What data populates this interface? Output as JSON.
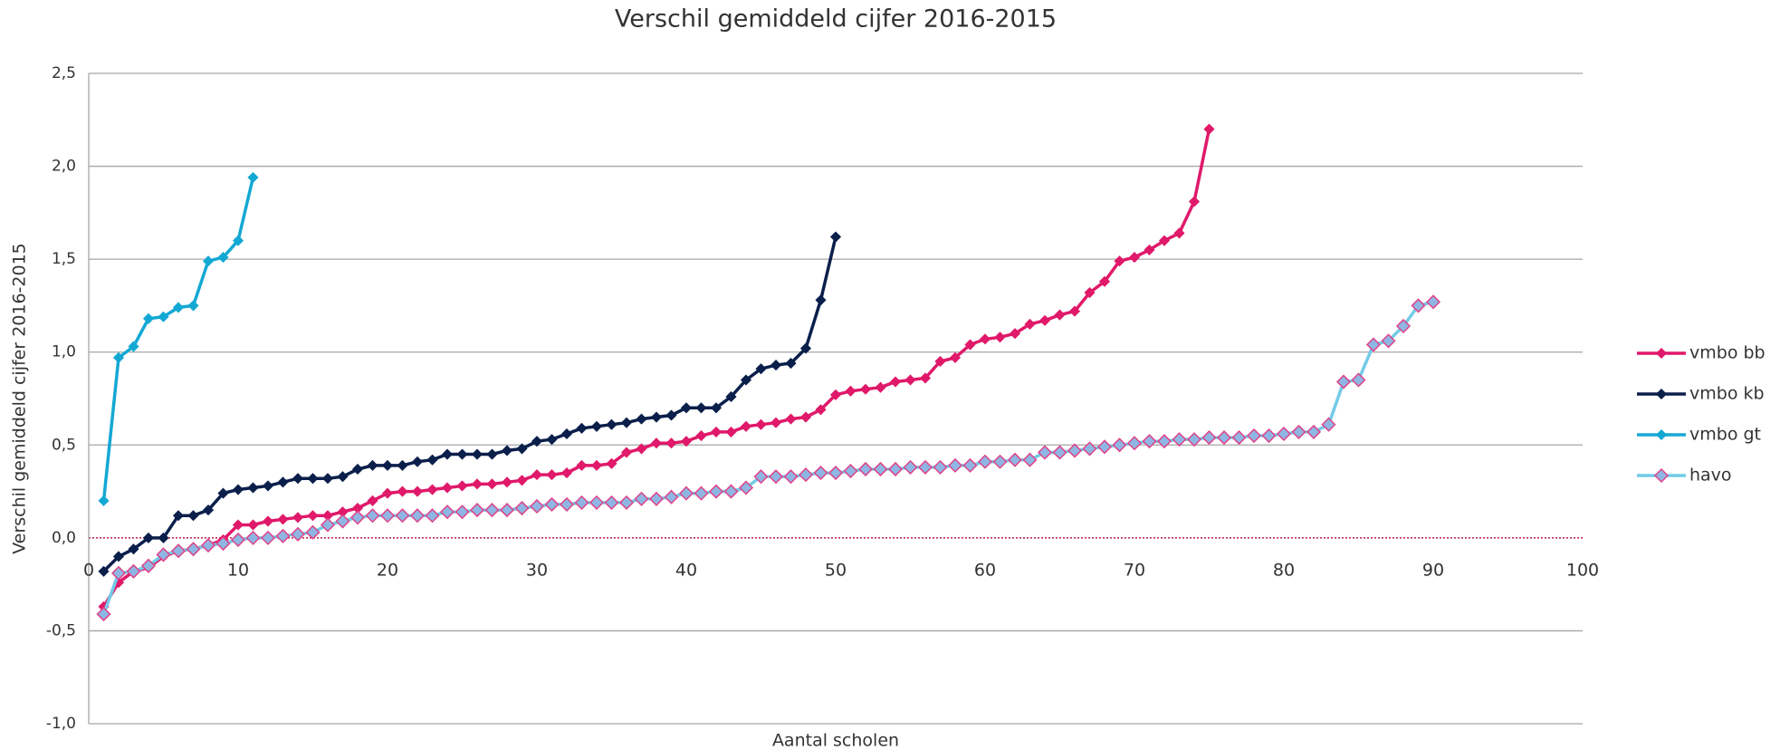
{
  "chart_data": {
    "type": "line",
    "title": "Verschil gemiddeld cijfer 2016-2015",
    "xlabel": "Aantal scholen",
    "ylabel": "Verschil gemiddeld cijfer 2016-2015",
    "xlim": [
      0,
      100
    ],
    "xticks": [
      0,
      10,
      20,
      30,
      40,
      50,
      60,
      70,
      80,
      90,
      100
    ],
    "ylim": [
      -1,
      2.5
    ],
    "yticks": [
      {
        "value": -1,
        "label": "-1,0"
      },
      {
        "value": -0.5,
        "label": "-0,5"
      },
      {
        "value": 0,
        "label": "0,0"
      },
      {
        "value": 0.5,
        "label": "0,5"
      },
      {
        "value": 1,
        "label": "1,0"
      },
      {
        "value": 1.5,
        "label": "1,5"
      },
      {
        "value": 2,
        "label": "2,0"
      },
      {
        "value": 2.5,
        "label": "2,5"
      }
    ],
    "grid": true,
    "zero_line_color": "#c0305a",
    "legend": "right",
    "x": [
      1,
      2,
      3,
      4,
      5,
      6,
      7,
      8,
      9,
      10,
      11,
      12,
      13,
      14,
      15,
      16,
      17,
      18,
      19,
      20,
      21,
      22,
      23,
      24,
      25,
      26,
      27,
      28,
      29,
      30,
      31,
      32,
      33,
      34,
      35,
      36,
      37,
      38,
      39,
      40,
      41,
      42,
      43,
      44,
      45,
      46,
      47,
      48,
      49,
      50,
      51,
      52,
      53,
      54,
      55,
      56,
      57,
      58,
      59,
      60,
      61,
      62,
      63,
      64,
      65,
      66,
      67,
      68,
      69,
      70,
      71,
      72,
      73,
      74,
      75,
      76,
      77,
      78,
      79,
      80,
      81,
      82,
      83,
      84,
      85,
      86,
      87,
      88,
      89,
      90
    ],
    "series": [
      {
        "name": "vmbo bb",
        "color": "#e0196a",
        "marker_color": "#e0196a",
        "marker_edge": "#e0196a",
        "marker_size": 5,
        "values": [
          -0.37,
          -0.24,
          -0.18,
          -0.16,
          -0.1,
          -0.07,
          -0.06,
          -0.04,
          -0.01,
          0.07,
          0.07,
          0.09,
          0.1,
          0.11,
          0.12,
          0.12,
          0.14,
          0.16,
          0.2,
          0.24,
          0.25,
          0.25,
          0.26,
          0.27,
          0.28,
          0.29,
          0.29,
          0.3,
          0.31,
          0.34,
          0.34,
          0.35,
          0.39,
          0.39,
          0.4,
          0.46,
          0.48,
          0.51,
          0.51,
          0.52,
          0.55,
          0.57,
          0.57,
          0.6,
          0.61,
          0.62,
          0.64,
          0.65,
          0.69,
          0.77,
          0.79,
          0.8,
          0.81,
          0.84,
          0.85,
          0.86,
          0.95,
          0.97,
          1.04,
          1.07,
          1.08,
          1.1,
          1.15,
          1.17,
          1.2,
          1.22,
          1.32,
          1.38,
          1.49,
          1.51,
          1.55,
          1.6,
          1.64,
          1.81,
          2.2,
          null,
          null,
          null,
          null,
          null,
          null,
          null,
          null,
          null,
          null,
          null,
          null,
          null,
          null,
          null
        ]
      },
      {
        "name": "vmbo kb",
        "color": "#0b1f4b",
        "marker_color": "#0b1f4b",
        "marker_edge": "#0b1f4b",
        "marker_size": 5,
        "values": [
          -0.18,
          -0.1,
          -0.06,
          0.0,
          0.0,
          0.12,
          0.12,
          0.15,
          0.24,
          0.26,
          0.27,
          0.28,
          0.3,
          0.32,
          0.32,
          0.32,
          0.33,
          0.37,
          0.39,
          0.39,
          0.39,
          0.41,
          0.42,
          0.45,
          0.45,
          0.45,
          0.45,
          0.47,
          0.48,
          0.52,
          0.53,
          0.56,
          0.59,
          0.6,
          0.61,
          0.62,
          0.64,
          0.65,
          0.66,
          0.7,
          0.7,
          0.7,
          0.76,
          0.85,
          0.91,
          0.93,
          0.94,
          1.02,
          1.28,
          1.62,
          null,
          null,
          null,
          null,
          null,
          null,
          null,
          null,
          null,
          null,
          null,
          null,
          null,
          null,
          null,
          null,
          null,
          null,
          null,
          null,
          null,
          null,
          null,
          null,
          null,
          null,
          null,
          null,
          null,
          null,
          null,
          null,
          null,
          null,
          null,
          null,
          null,
          null,
          null,
          null
        ]
      },
      {
        "name": "vmbo gt",
        "color": "#13a8d4",
        "marker_color": "#13a8d4",
        "marker_edge": "#13a8d4",
        "marker_size": 5,
        "values": [
          0.2,
          0.97,
          1.03,
          1.18,
          1.19,
          1.24,
          1.25,
          1.49,
          1.51,
          1.6,
          1.94,
          null,
          null,
          null,
          null,
          null,
          null,
          null,
          null,
          null,
          null,
          null,
          null,
          null,
          null,
          null,
          null,
          null,
          null,
          null,
          null,
          null,
          null,
          null,
          null,
          null,
          null,
          null,
          null,
          null,
          null,
          null,
          null,
          null,
          null,
          null,
          null,
          null,
          null,
          null,
          null,
          null,
          null,
          null,
          null,
          null,
          null,
          null,
          null,
          null,
          null,
          null,
          null,
          null,
          null,
          null,
          null,
          null,
          null,
          null,
          null,
          null,
          null,
          null,
          null,
          null,
          null,
          null,
          null,
          null,
          null,
          null,
          null,
          null,
          null,
          null,
          null,
          null,
          null,
          null
        ]
      },
      {
        "name": "havo",
        "color": "#72cbe8",
        "marker_color": "#8fb6e2",
        "marker_edge": "#e0428a",
        "marker_size": 7,
        "values": [
          -0.41,
          -0.19,
          -0.18,
          -0.15,
          -0.09,
          -0.07,
          -0.06,
          -0.04,
          -0.03,
          -0.01,
          0.0,
          0.0,
          0.01,
          0.02,
          0.03,
          0.07,
          0.09,
          0.11,
          0.12,
          0.12,
          0.12,
          0.12,
          0.12,
          0.14,
          0.14,
          0.15,
          0.15,
          0.15,
          0.16,
          0.17,
          0.18,
          0.18,
          0.19,
          0.19,
          0.19,
          0.19,
          0.21,
          0.21,
          0.22,
          0.24,
          0.24,
          0.25,
          0.25,
          0.27,
          0.33,
          0.33,
          0.33,
          0.34,
          0.35,
          0.35,
          0.36,
          0.37,
          0.37,
          0.37,
          0.38,
          0.38,
          0.38,
          0.39,
          0.39,
          0.41,
          0.41,
          0.42,
          0.42,
          0.46,
          0.46,
          0.47,
          0.48,
          0.49,
          0.5,
          0.51,
          0.52,
          0.52,
          0.53,
          0.53,
          0.54,
          0.54,
          0.54,
          0.55,
          0.55,
          0.56,
          0.57,
          0.57,
          0.61,
          0.84,
          0.85,
          1.04,
          1.06,
          1.14,
          1.25,
          1.27
        ]
      }
    ]
  }
}
